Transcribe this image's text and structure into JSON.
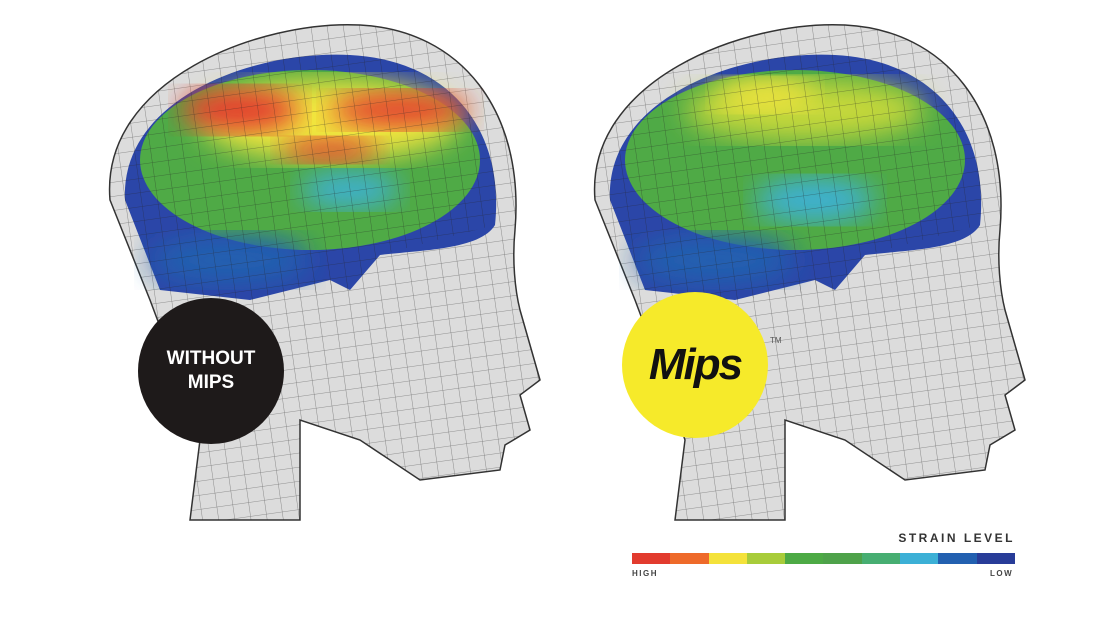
{
  "left_panel": {
    "badge_line1": "WITHOUT",
    "badge_line2": "MIPS"
  },
  "right_panel": {
    "logo_text": "Mips",
    "trademark": "TM"
  },
  "legend": {
    "title": "STRAIN LEVEL",
    "high_label": "HIGH",
    "low_label": "LOW",
    "colors": [
      "#e23b2e",
      "#ee6a2a",
      "#f4e23a",
      "#a8cc3a",
      "#4daa45",
      "#4ea24a",
      "#47ae72",
      "#3cb0d6",
      "#2260b0",
      "#283c98"
    ]
  },
  "colors": {
    "badge_dark": "#1e1a1a",
    "badge_yellow": "#f6ea2a"
  }
}
